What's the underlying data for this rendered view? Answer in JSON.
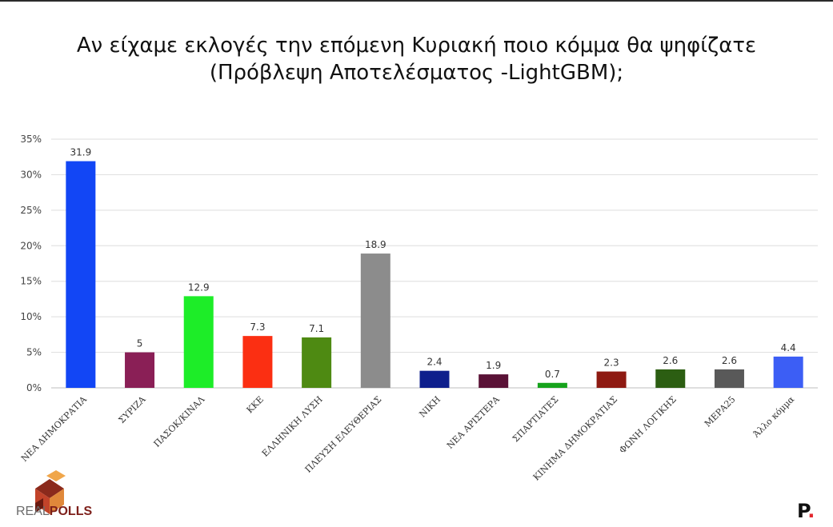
{
  "title_line1": "Αν είχαμε εκλογές την επόμενη Κυριακή ποιο κόμμα θα ψηφίζατε",
  "title_line2": "(Πρόβλεψη Αποτελέσματος -LightGBM);",
  "logo_left_part1": "REAL",
  "logo_left_part2": "POLLS",
  "logo_right": "P",
  "logo_right_dot": ".",
  "chart_data": {
    "type": "bar",
    "title": "Αν είχαμε εκλογές την επόμενη Κυριακή ποιο κόμμα θα ψηφίζατε (Πρόβλεψη Αποτελέσματος -LightGBM);",
    "xlabel": "",
    "ylabel": "",
    "ylim": [
      0,
      35
    ],
    "yticks": [
      "0%",
      "5%",
      "10%",
      "15%",
      "20%",
      "25%",
      "30%",
      "35%"
    ],
    "grid": true,
    "categories": [
      "ΝΕΑ ΔΗΜΟΚΡΑΤΙΑ",
      "ΣΥΡΙΖΑ",
      "ΠΑΣΟΚ/ΚΙΝΑΛ",
      "ΚΚΕ",
      "ΕΛΛΗΝΙΚΗ ΛΥΣΗ",
      "ΠΛΕΥΣΗ ΕΛΕΥΘΕΡΙΑΣ",
      "ΝΙΚΗ",
      "ΝΕΑ ΑΡΙΣΤΕΡΑ",
      "ΣΠΑΡΤΙΑΤΕΣ",
      "ΚΙΝΗΜΑ ΔΗΜΟΚΡΑΤΙΑΣ",
      "ΦΩΝΗ ΛΟΓΙΚΗΣ",
      "ΜΕΡΑ25",
      "Άλλο κόμμα"
    ],
    "values": [
      31.9,
      5,
      12.9,
      7.3,
      7.1,
      18.9,
      2.4,
      1.9,
      0.7,
      2.3,
      2.6,
      2.6,
      4.4
    ],
    "data_labels": [
      "31.9",
      "5",
      "12.9",
      "7.3",
      "7.1",
      "18.9",
      "2.4",
      "1.9",
      "0.7",
      "2.3",
      "2.6",
      "2.6",
      "4.4"
    ],
    "colors": [
      "#1246f5",
      "#8a1f56",
      "#1ded28",
      "#fb2f12",
      "#4e8a12",
      "#8c8c8c",
      "#0e1f8c",
      "#5a1236",
      "#16a31c",
      "#8e1a12",
      "#2c5e12",
      "#595959",
      "#3c5ef5"
    ]
  }
}
